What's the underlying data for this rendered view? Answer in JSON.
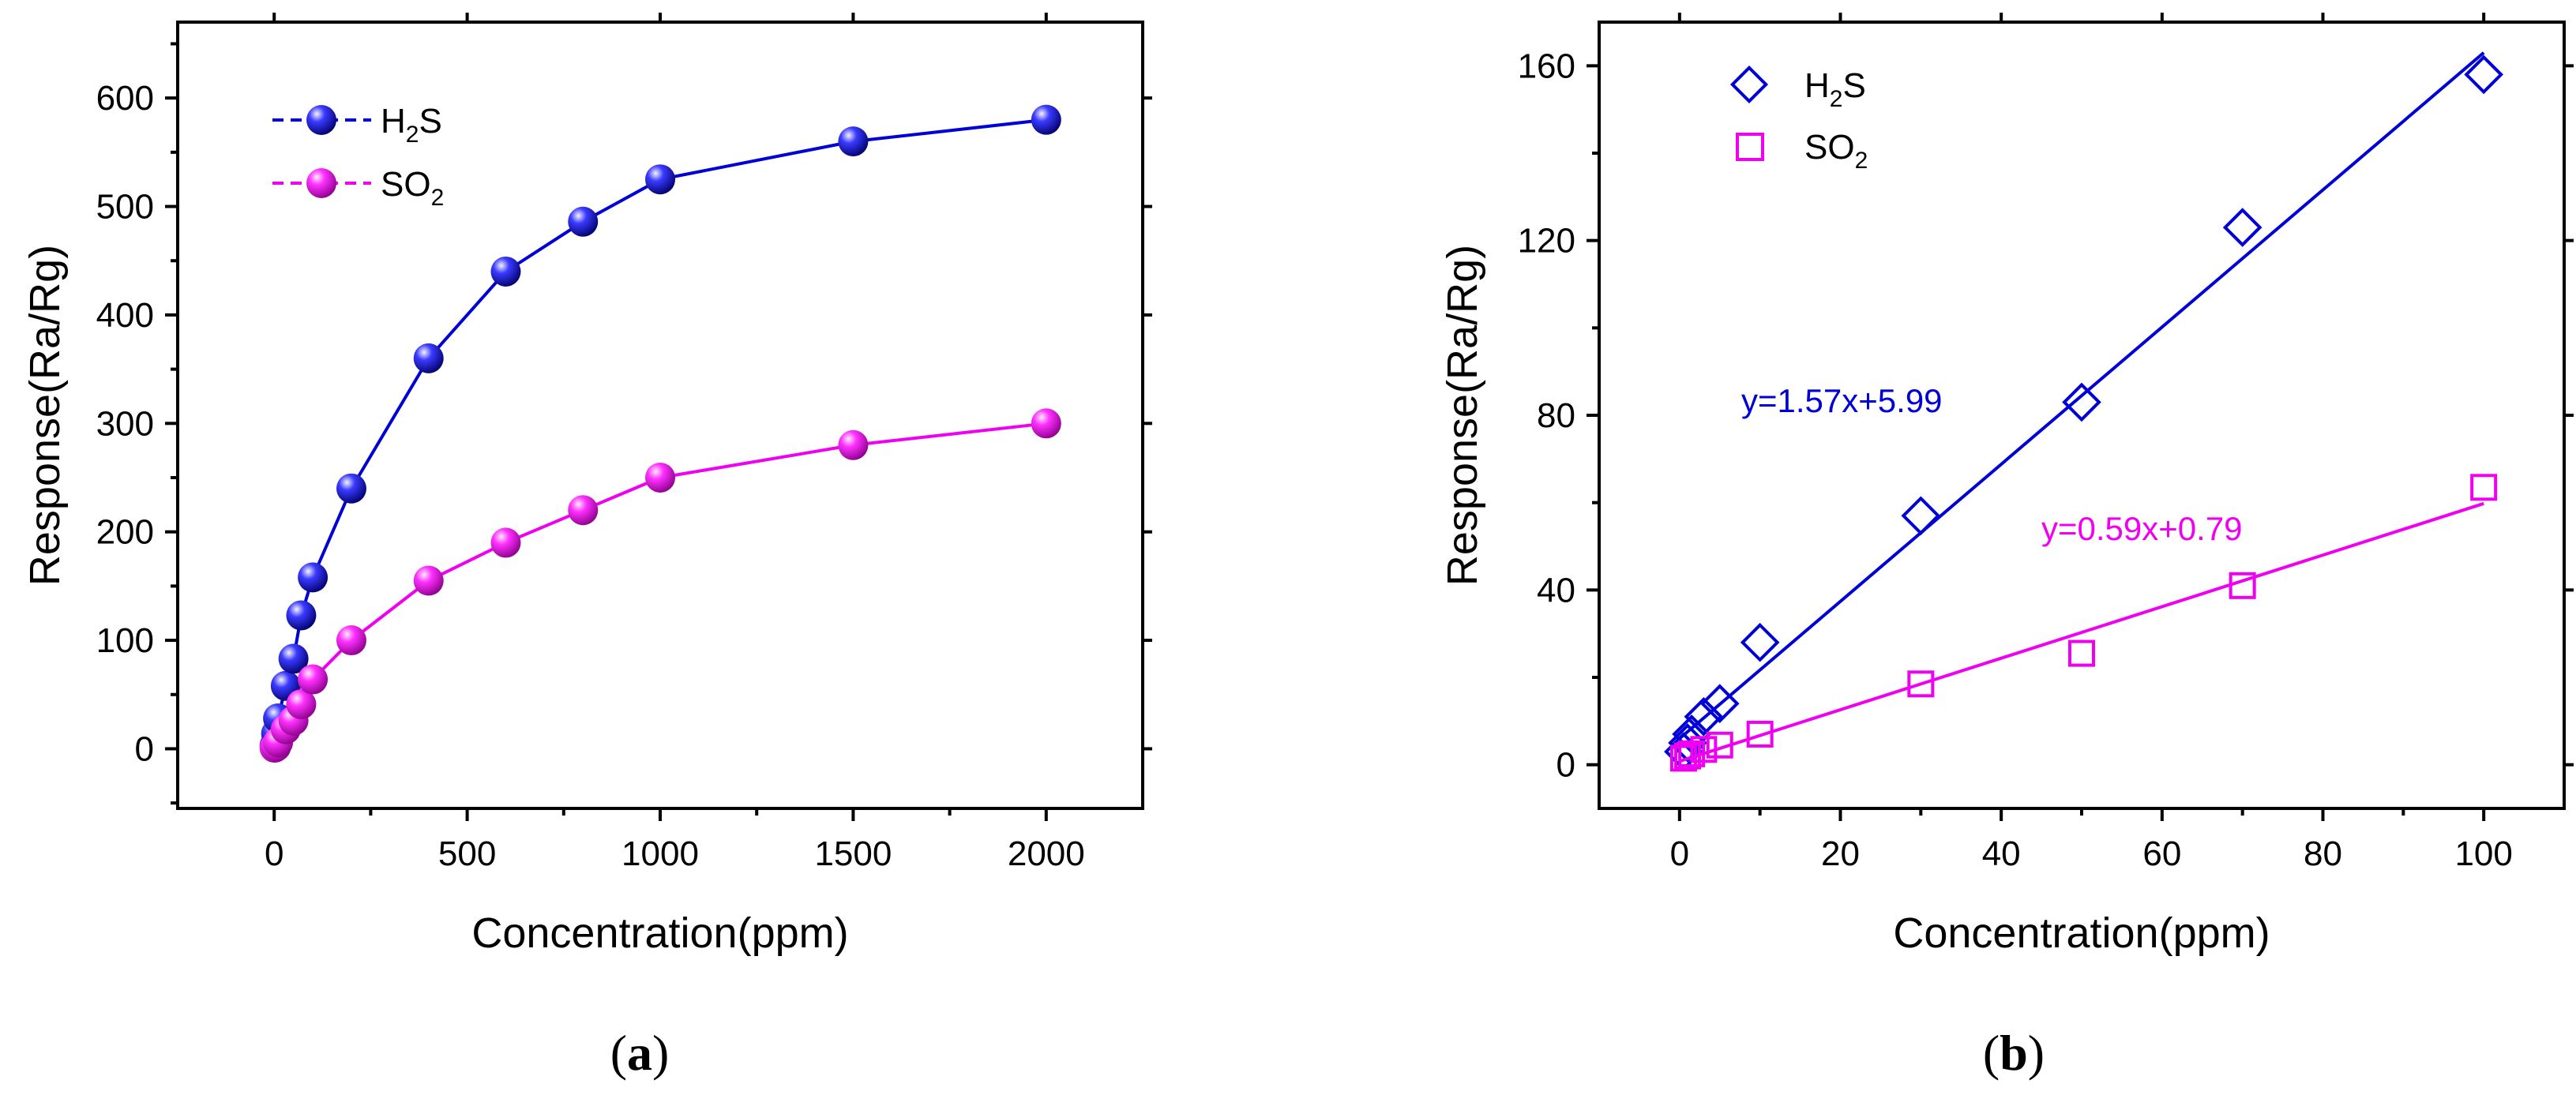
{
  "colors": {
    "h2s": "#0000d6",
    "so2": "#f000f0",
    "axis": "#000000"
  },
  "chart_data": [
    {
      "type": "line",
      "panel_label": {
        "open": "(",
        "letter": "a",
        "close": ")"
      },
      "xlabel": "Concentration(ppm)",
      "ylabel": "Response(Ra/Rg)",
      "xlim": [
        -250,
        2250
      ],
      "ylim": [
        -55,
        670
      ],
      "xticks": [
        0,
        500,
        1000,
        1500,
        2000
      ],
      "yticks": [
        0,
        100,
        200,
        300,
        400,
        500,
        600
      ],
      "xtick_labels": [
        "0",
        "500",
        "1000",
        "1500",
        "2000"
      ],
      "ytick_labels": [
        "0",
        "100",
        "200",
        "300",
        "400",
        "500",
        "600"
      ],
      "legend": {
        "position": "top-left"
      },
      "series": [
        {
          "name": "H2S",
          "label_main": "H",
          "label_sub": "2",
          "label_end": "S",
          "color_key": "h2s",
          "marker": "sphere",
          "x": [
            1,
            5,
            10,
            30,
            50,
            70,
            100,
            200,
            400,
            600,
            800,
            1000,
            1500,
            2000
          ],
          "y": [
            3,
            14,
            28,
            58,
            83,
            123,
            158,
            240,
            360,
            440,
            486,
            525,
            560,
            580
          ]
        },
        {
          "name": "SO2",
          "label_main": "SO",
          "label_sub": "2",
          "label_end": "",
          "color_key": "so2",
          "marker": "sphere",
          "x": [
            1,
            5,
            10,
            30,
            50,
            70,
            100,
            200,
            400,
            600,
            800,
            1000,
            1500,
            2000
          ],
          "y": [
            1,
            2,
            6,
            18,
            26,
            41,
            64,
            100,
            155,
            190,
            220,
            250,
            280,
            300
          ]
        }
      ]
    },
    {
      "type": "scatter",
      "panel_label": {
        "open": "(",
        "letter": "b",
        "close": ")"
      },
      "xlabel": "Concentration(ppm)",
      "ylabel": "Response(Ra/Rg)",
      "xlim": [
        -10,
        110
      ],
      "ylim": [
        -10,
        170
      ],
      "xticks": [
        0,
        20,
        40,
        60,
        80,
        100
      ],
      "yticks": [
        0,
        40,
        80,
        120,
        160
      ],
      "xtick_labels": [
        "0",
        "20",
        "40",
        "60",
        "80",
        "100"
      ],
      "ytick_labels": [
        "0",
        "40",
        "80",
        "120",
        "160"
      ],
      "legend": {
        "position": "top-left"
      },
      "series": [
        {
          "name": "H2S",
          "label_main": "H",
          "label_sub": "2",
          "label_end": "S",
          "color_key": "h2s",
          "marker": "diamond",
          "x": [
            0.5,
            1,
            1.5,
            3,
            5,
            10,
            30,
            50,
            70,
            100
          ],
          "y": [
            3,
            5,
            7,
            11,
            14,
            28,
            57,
            83,
            123,
            158
          ],
          "fit": {
            "slope": 1.57,
            "intercept": 5.99,
            "x_range": [
              0,
              100
            ],
            "equation": "y=1.57x+5.99"
          }
        },
        {
          "name": "SO2",
          "label_main": "SO",
          "label_sub": "2",
          "label_end": "",
          "color_key": "so2",
          "marker": "square",
          "x": [
            0.5,
            1,
            1.5,
            3,
            5,
            10,
            30,
            50,
            70,
            100
          ],
          "y": [
            1.5,
            2,
            2.5,
            3.5,
            4.5,
            7,
            18.5,
            25.5,
            41,
            63.5
          ],
          "fit": {
            "slope": 0.59,
            "intercept": 0.79,
            "x_range": [
              0,
              100
            ],
            "equation": "y=0.59x+0.79"
          }
        }
      ]
    }
  ]
}
